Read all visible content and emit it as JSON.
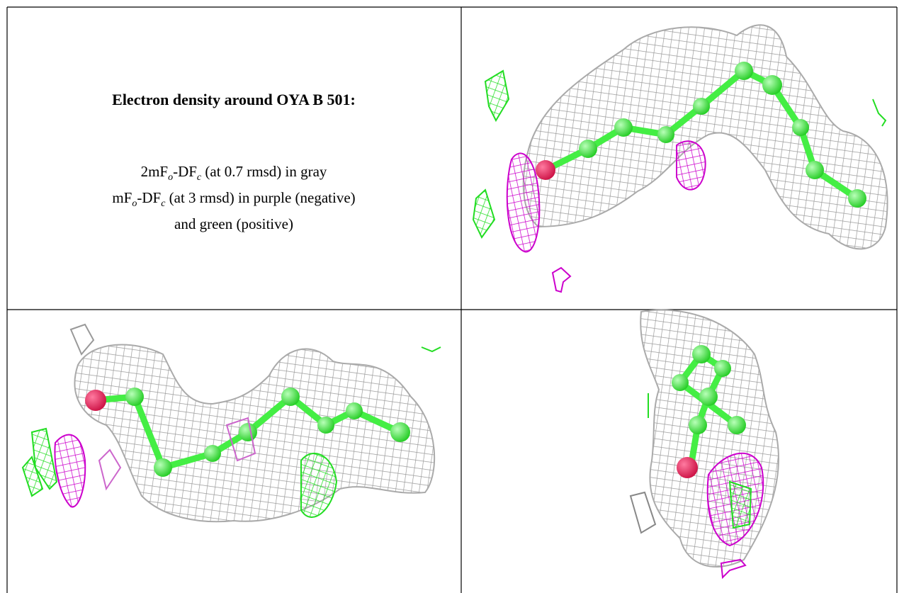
{
  "title": "Electron density around OYA B 501:",
  "legend": {
    "lines": [
      [
        "2mF",
        "o",
        "-DF",
        "c",
        " (at 0.7 rmsd) in gray"
      ],
      [
        "mF",
        "o",
        "-DF",
        "c",
        " (at 3 rmsd) in purple (negative)"
      ],
      [
        "and green (positive)"
      ]
    ]
  }
}
